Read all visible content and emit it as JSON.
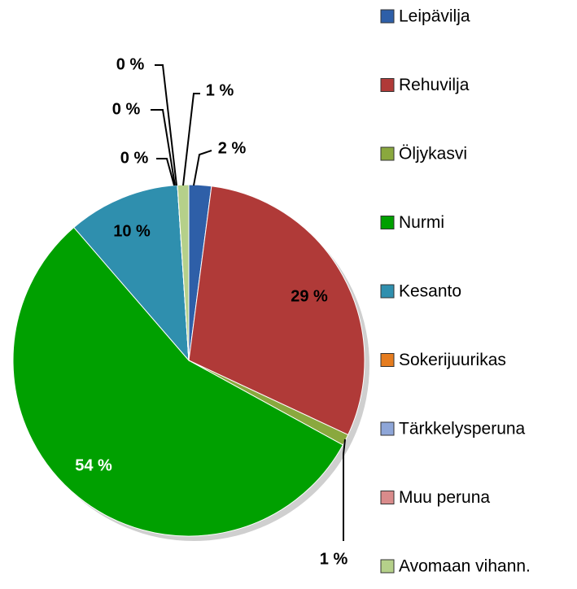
{
  "chart_data": {
    "type": "pie",
    "categories": [
      "Leipävilja",
      "Rehuvilja",
      "Öljykasvi",
      "Nurmi",
      "Kesanto",
      "Sokerijuurikas",
      "Tärkkelysperuna",
      "Muu peruna",
      "Avomaan vihann."
    ],
    "values": [
      2,
      29,
      1,
      54,
      10,
      0,
      0,
      0,
      1
    ],
    "value_labels": [
      "2 %",
      "29 %",
      "1 %",
      "54 %",
      "10 %",
      "0 %",
      "0 %",
      "0 %",
      "1 %"
    ],
    "colors": [
      "#2e5fa8",
      "#b03a38",
      "#8aa83e",
      "#00a000",
      "#2f8fae",
      "#e57c1f",
      "#8ea6d8",
      "#d98b8b",
      "#b5d08a"
    ],
    "legend": "right"
  }
}
